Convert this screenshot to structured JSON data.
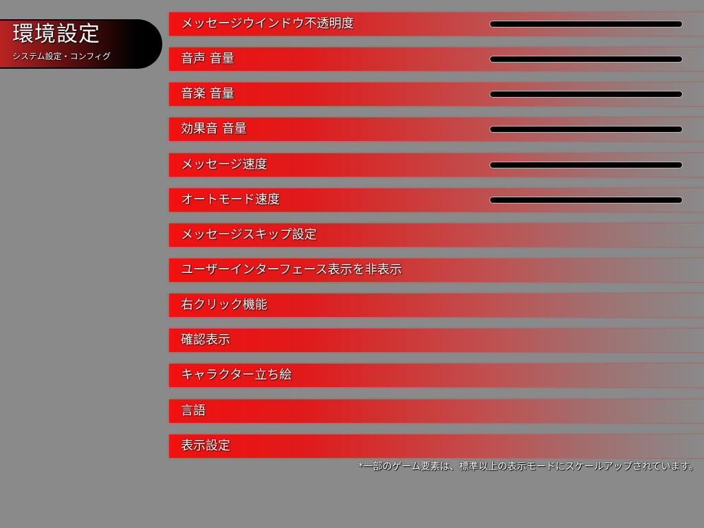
{
  "header": {
    "title": "環境設定",
    "subtitle": "システム設定・コンフィグ"
  },
  "settings": [
    {
      "label": "メッセージウインドウ不透明度",
      "slider": true
    },
    {
      "label": "音声 音量",
      "slider": true
    },
    {
      "label": "音楽 音量",
      "slider": true
    },
    {
      "label": "効果音 音量",
      "slider": true
    },
    {
      "label": "メッセージ速度",
      "slider": true
    },
    {
      "label": "オートモード速度",
      "slider": true
    },
    {
      "label": "メッセージスキップ設定",
      "slider": false
    },
    {
      "label": "ユーザーインターフェース表示を非表示",
      "slider": false
    },
    {
      "label": "右クリック機能",
      "slider": false
    },
    {
      "label": "確認表示",
      "slider": false
    },
    {
      "label": "キャラクター立ち絵",
      "slider": false
    },
    {
      "label": "言語",
      "slider": false
    },
    {
      "label": "表示設定",
      "slider": false
    }
  ],
  "footnote": "*一部のゲーム要素は、標準以上の表示モードにスケールアップされています。",
  "colors": {
    "accent": "#f21010",
    "background": "#8a8a8a",
    "slider_track": "#000000"
  }
}
